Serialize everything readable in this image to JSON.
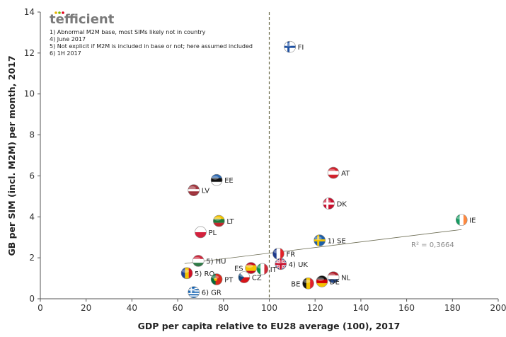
{
  "logo": {
    "text": "tefficient",
    "dot_colors": [
      "#e8b400",
      "#7ab800",
      "#e0001a"
    ]
  },
  "notes": [
    "1) Abnormal M2M base, most SIMs likely not in country",
    "4) June 2017",
    "5) Not explicit if M2M is included in base or not; here assumed included",
    "6) 1H 2017"
  ],
  "chart_data": {
    "type": "scatter",
    "xlabel": "GDP per capita relative to EU28 average (100), 2017",
    "ylabel": "GB per SIM (incl. M2M) per month, 2017",
    "xlim": [
      0,
      200
    ],
    "ylim": [
      0,
      14
    ],
    "xticks": [
      0,
      20,
      40,
      60,
      80,
      100,
      120,
      140,
      160,
      180,
      200
    ],
    "yticks": [
      0,
      2,
      4,
      6,
      8,
      10,
      12,
      14
    ],
    "grid": false,
    "reference_line": {
      "x": 100,
      "style": "dashed"
    },
    "trendline": {
      "label": "R² = 0,3664",
      "x": [
        63,
        184
      ],
      "y": [
        1.72,
        3.38
      ]
    },
    "points": [
      {
        "label": "FI",
        "x": 109,
        "y": 12.3,
        "flag": "fi"
      },
      {
        "label": "AT",
        "x": 128,
        "y": 6.15,
        "flag": "at"
      },
      {
        "label": "EE",
        "x": 77,
        "y": 5.8,
        "flag": "ee"
      },
      {
        "label": "LV",
        "x": 67,
        "y": 5.3,
        "flag": "lv"
      },
      {
        "label": "DK",
        "x": 126,
        "y": 4.65,
        "flag": "dk"
      },
      {
        "label": "IE",
        "x": 184,
        "y": 3.85,
        "flag": "ie"
      },
      {
        "label": "LT",
        "x": 78,
        "y": 3.8,
        "flag": "lt"
      },
      {
        "label": "PL",
        "x": 70,
        "y": 3.25,
        "flag": "pl"
      },
      {
        "label": "1) SE",
        "x": 122,
        "y": 2.85,
        "flag": "se"
      },
      {
        "label": "FR",
        "x": 104,
        "y": 2.2,
        "flag": "fr"
      },
      {
        "label": "5) HU",
        "x": 69,
        "y": 1.85,
        "flag": "hu"
      },
      {
        "label": "4) UK",
        "x": 105,
        "y": 1.7,
        "flag": "uk"
      },
      {
        "label": "ES",
        "x": 92,
        "y": 1.5,
        "flag": "es"
      },
      {
        "label": "IT",
        "x": 97,
        "y": 1.45,
        "flag": "it"
      },
      {
        "label": "5) RO",
        "x": 64,
        "y": 1.25,
        "flag": "ro"
      },
      {
        "label": "CZ",
        "x": 89,
        "y": 1.05,
        "flag": "cz"
      },
      {
        "label": "NL",
        "x": 128,
        "y": 1.05,
        "flag": "nl"
      },
      {
        "label": "PT",
        "x": 77,
        "y": 0.95,
        "flag": "pt"
      },
      {
        "label": "DE",
        "x": 123,
        "y": 0.85,
        "flag": "de"
      },
      {
        "label": "BE",
        "x": 117,
        "y": 0.75,
        "flag": "be"
      },
      {
        "label": "6) GR",
        "x": 67,
        "y": 0.32,
        "flag": "gr"
      }
    ]
  }
}
